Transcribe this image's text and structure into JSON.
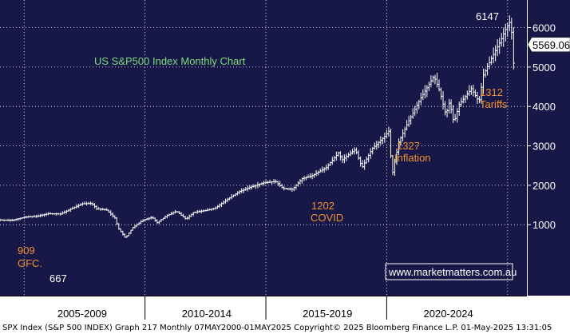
{
  "colors": {
    "plot_bg": "#181848",
    "axis_bg": "#ffffff",
    "candle": "#ffffff",
    "grid": "#ffffff",
    "title_text": "#7ddc7d",
    "annotation_text": "#f0922e",
    "peak_text": "#ffffff",
    "watermark_text": "#ffffff",
    "footer_text": "#000000"
  },
  "chart_data": {
    "type": "line",
    "title": "US S&P500 Index Monthly Chart",
    "x_period_labels": [
      "2005-2009",
      "2010-2014",
      "2015-2019",
      "2020-2024"
    ],
    "ylim": [
      -800,
      6700
    ],
    "xlim": [
      2004.0,
      2025.8
    ],
    "yticks": [
      1000,
      2000,
      3000,
      4000,
      5000,
      6000
    ],
    "last_price": "5569.06",
    "grid": true,
    "points": [
      [
        2004.0,
        1120
      ],
      [
        2004.5,
        1110
      ],
      [
        2005.0,
        1190
      ],
      [
        2005.5,
        1210
      ],
      [
        2006.0,
        1280
      ],
      [
        2006.5,
        1270
      ],
      [
        2007.0,
        1420
      ],
      [
        2007.4,
        1530
      ],
      [
        2007.8,
        1540
      ],
      [
        2008.0,
        1400
      ],
      [
        2008.4,
        1380
      ],
      [
        2008.75,
        1170
      ],
      [
        2008.9,
        909
      ],
      [
        2009.1,
        740
      ],
      [
        2009.19,
        667
      ],
      [
        2009.5,
        930
      ],
      [
        2009.9,
        1110
      ],
      [
        2010.3,
        1190
      ],
      [
        2010.5,
        1050
      ],
      [
        2010.9,
        1230
      ],
      [
        2011.3,
        1340
      ],
      [
        2011.7,
        1140
      ],
      [
        2012.0,
        1310
      ],
      [
        2012.5,
        1360
      ],
      [
        2012.9,
        1420
      ],
      [
        2013.4,
        1640
      ],
      [
        2013.9,
        1840
      ],
      [
        2014.4,
        1960
      ],
      [
        2014.9,
        2060
      ],
      [
        2015.4,
        2100
      ],
      [
        2015.7,
        1920
      ],
      [
        2016.1,
        1900
      ],
      [
        2016.5,
        2170
      ],
      [
        2016.9,
        2240
      ],
      [
        2017.5,
        2450
      ],
      [
        2018.0,
        2820
      ],
      [
        2018.15,
        2640
      ],
      [
        2018.7,
        2910
      ],
      [
        2018.98,
        2450
      ],
      [
        2019.4,
        2930
      ],
      [
        2019.9,
        3230
      ],
      [
        2020.1,
        3380
      ],
      [
        2020.22,
        2240
      ],
      [
        2020.5,
        3100
      ],
      [
        2020.9,
        3620
      ],
      [
        2021.4,
        4200
      ],
      [
        2021.95,
        4770
      ],
      [
        2022.2,
        4380
      ],
      [
        2022.45,
        3780
      ],
      [
        2022.6,
        4120
      ],
      [
        2022.78,
        3580
      ],
      [
        2023.0,
        4050
      ],
      [
        2023.5,
        4450
      ],
      [
        2023.82,
        4120
      ],
      [
        2024.0,
        4800
      ],
      [
        2024.4,
        5300
      ],
      [
        2024.7,
        5650
      ],
      [
        2024.95,
        6000
      ],
      [
        2025.1,
        6147
      ],
      [
        2025.2,
        5750
      ],
      [
        2025.27,
        4835
      ],
      [
        2025.33,
        5569
      ]
    ],
    "annotations": [
      {
        "label_value": "909",
        "label_text": "GFC.",
        "x": 2008.9,
        "y": 909
      },
      {
        "label_value": "667",
        "x": 2009.19,
        "y": 667
      },
      {
        "label_value": "1202",
        "label_text": "COVID",
        "x": 2020.22,
        "y": 2240
      },
      {
        "label_value": "1327",
        "label_text": "Inflation",
        "x": 2022.78,
        "y": 3580
      },
      {
        "label_value": "1312",
        "label_text": "Tariffs",
        "x": 2025.27,
        "y": 4835
      },
      {
        "label_value": "6147",
        "x": 2025.1,
        "y": 6147
      }
    ]
  },
  "watermark": "www.marketmatters.com.au",
  "footer": "SPX Index (S&P 500 INDEX) Graph 217  Monthly 07MAY2000-01MAY2025 Copyright© 2025 Bloomberg Finance L.P.  01-May-2025 13:31:05"
}
